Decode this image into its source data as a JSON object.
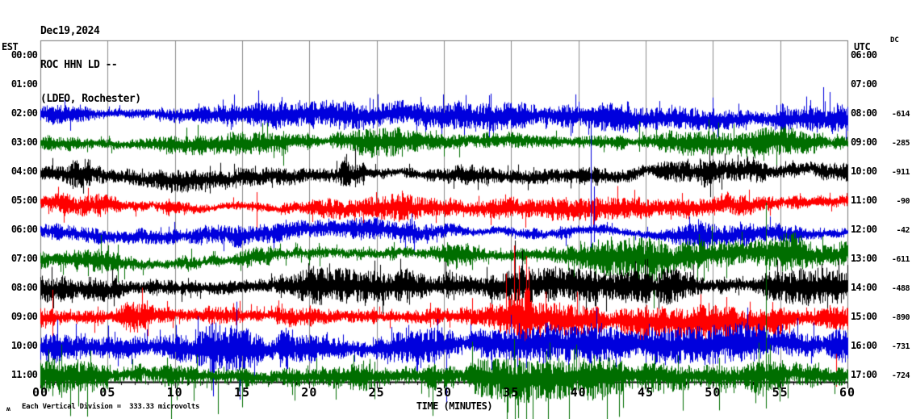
{
  "title": {
    "date": "Dec19,2024",
    "station": "ROC HHN LD --",
    "location": "(LDEO, Rochester)"
  },
  "axes": {
    "left_header": "EST",
    "right_header": "UTC",
    "dc_header": "DC",
    "x_label": "TIME (MINUTES)",
    "x_ticks": [
      "00",
      "05",
      "10",
      "15",
      "20",
      "25",
      "30",
      "35",
      "40",
      "45",
      "50",
      "55",
      "60"
    ],
    "footnote_marker": "ʍ",
    "footnote": "Each Vertical Division =  333.33 microvolts"
  },
  "colors": {
    "black_trace": "#000000",
    "red_trace": "#ff0000",
    "blue_trace": "#0000dd",
    "green_trace": "#006e00",
    "gridline": "#8c8c8c",
    "border": "#777777",
    "axis": "#000000",
    "text": "#000000",
    "background": "#ffffff"
  },
  "chart_data": {
    "type": "line",
    "subtype": "helicorder-seismogram",
    "x_range_minutes": [
      0,
      60
    ],
    "minutes_per_row": 60,
    "gridlines_every_minutes": 5,
    "vertical_division_microvolts": 333.33,
    "rows": [
      {
        "est": "00:00",
        "utc": "06:00",
        "dc": null,
        "color": null,
        "seed": 0,
        "amp": 0,
        "wstep": 0,
        "wmax": 0,
        "bursts": [],
        "spikes": [],
        "tail_p": 0,
        "tail_f": 1,
        "dbias": 1
      },
      {
        "est": "01:00",
        "utc": "07:00",
        "dc": null,
        "color": null,
        "seed": 0,
        "amp": 0,
        "wstep": 0,
        "wmax": 0,
        "bursts": [],
        "spikes": [],
        "tail_p": 0,
        "tail_f": 1,
        "dbias": 1
      },
      {
        "est": "02:00",
        "utc": "08:00",
        "dc": "-614",
        "color": "#0000dd",
        "seed": 101,
        "amp": 8,
        "wstep": 1.0,
        "wmax": 7,
        "bursts": [
          {
            "from": 55,
            "to": 60,
            "f": 1.7
          },
          {
            "from": 0.8,
            "to": 2.5,
            "f": 1.3
          }
        ],
        "spikes": [
          {
            "m": 58.2,
            "up": 34,
            "down": 12
          },
          {
            "m": 58.7,
            "up": 28,
            "down": 8
          },
          {
            "m": 16.2,
            "up": 30,
            "down": 8
          },
          {
            "m": 33.5,
            "up": 26,
            "down": 6
          }
        ],
        "tail_p": 0.035,
        "tail_f": 2.0,
        "dbias": 1
      },
      {
        "est": "03:00",
        "utc": "09:00",
        "dc": "-285",
        "color": "#006e00",
        "seed": 202,
        "amp": 7,
        "wstep": 0.9,
        "wmax": 7,
        "bursts": [
          {
            "from": 18,
            "to": 30,
            "f": 1.25
          },
          {
            "from": 52,
            "to": 58,
            "f": 1.2
          }
        ],
        "spikes": [
          {
            "m": 44.5,
            "up": 28,
            "down": 10
          }
        ],
        "tail_p": 0.03,
        "tail_f": 1.9,
        "dbias": 1
      },
      {
        "est": "04:00",
        "utc": "10:00",
        "dc": "-911",
        "color": "#000000",
        "seed": 303,
        "amp": 6.5,
        "wstep": 1.6,
        "wmax": 11,
        "bursts": [
          {
            "from": 2.2,
            "to": 3.8,
            "f": 1.8
          },
          {
            "from": 22.3,
            "to": 24.2,
            "f": 1.8
          },
          {
            "from": 49,
            "to": 54,
            "f": 1.4
          }
        ],
        "spikes": [
          {
            "m": 23.4,
            "up": 30,
            "down": 18
          }
        ],
        "tail_p": 0.03,
        "tail_f": 2.0,
        "dbias": 1
      },
      {
        "est": "05:00",
        "utc": "11:00",
        "dc": "-90",
        "color": "#ff0000",
        "seed": 404,
        "amp": 6.5,
        "wstep": 1.5,
        "wmax": 10,
        "bursts": [
          {
            "from": 8.5,
            "to": 9.6,
            "f": 1.5
          },
          {
            "from": 26,
            "to": 27.5,
            "f": 1.4
          }
        ],
        "spikes": [
          {
            "m": 16.1,
            "up": 12,
            "down": 40
          }
        ],
        "tail_p": 0.03,
        "tail_f": 2.0,
        "dbias": 1
      },
      {
        "est": "06:00",
        "utc": "12:00",
        "dc": "-42",
        "color": "#0000dd",
        "seed": 505,
        "amp": 6.5,
        "wstep": 1.4,
        "wmax": 9,
        "bursts": [
          {
            "from": 49,
            "to": 53,
            "f": 1.5
          }
        ],
        "spikes": [
          {
            "m": 40.9,
            "up": 135,
            "down": 22
          },
          {
            "m": 41.15,
            "up": 55,
            "down": 14
          },
          {
            "m": 27.8,
            "up": 12,
            "down": 30
          }
        ],
        "tail_p": 0.03,
        "tail_f": 2.0,
        "dbias": 1
      },
      {
        "est": "07:00",
        "utc": "13:00",
        "dc": "-611",
        "color": "#006e00",
        "seed": 606,
        "amp": 8.5,
        "wstep": 1.5,
        "wmax": 10,
        "bursts": [
          {
            "from": 14.5,
            "to": 18,
            "f": 1.55
          },
          {
            "from": 40,
            "to": 46.5,
            "f": 1.45
          },
          {
            "from": 55,
            "to": 60,
            "f": 1.3
          }
        ],
        "spikes": [
          {
            "m": 41.3,
            "up": 18,
            "down": 70
          },
          {
            "m": 45.6,
            "up": 15,
            "down": 60
          }
        ],
        "tail_p": 0.04,
        "tail_f": 2.1,
        "dbias": 1
      },
      {
        "est": "08:00",
        "utc": "14:00",
        "dc": "-488",
        "color": "#000000",
        "seed": 707,
        "amp": 10.5,
        "wstep": 1.0,
        "wmax": 7,
        "bursts": [
          {
            "from": 0,
            "to": 12,
            "f": 1.15
          }
        ],
        "spikes": [
          {
            "m": 35.3,
            "up": 60,
            "down": 15
          }
        ],
        "tail_p": 0.04,
        "tail_f": 2.0,
        "dbias": 1
      },
      {
        "est": "09:00",
        "utc": "15:00",
        "dc": "-890",
        "color": "#ff0000",
        "seed": 808,
        "amp": 10.5,
        "wstep": 1.0,
        "wmax": 7,
        "bursts": [
          {
            "from": 34.6,
            "to": 36.4,
            "f": 1.6
          }
        ],
        "spikes": [
          {
            "m": 35.2,
            "up": 90,
            "down": 85
          },
          {
            "m": 35.6,
            "up": 65,
            "down": 60
          },
          {
            "m": 59.15,
            "up": 12,
            "down": 85
          },
          {
            "m": 0.9,
            "up": 35,
            "down": 30
          }
        ],
        "tail_p": 0.045,
        "tail_f": 2.1,
        "dbias": 1
      },
      {
        "est": "10:00",
        "utc": "16:00",
        "dc": "-731",
        "color": "#0000dd",
        "seed": 909,
        "amp": 11.5,
        "wstep": 1.0,
        "wmax": 7,
        "bursts": [
          {
            "from": 11.5,
            "to": 18.5,
            "f": 1.35
          }
        ],
        "spikes": [
          {
            "m": 30.2,
            "up": 15,
            "down": 70
          },
          {
            "m": 14.8,
            "up": 20,
            "down": 65
          }
        ],
        "tail_p": 0.05,
        "tail_f": 2.0,
        "dbias": 1
      },
      {
        "est": "11:00",
        "utc": "17:00",
        "dc": "-724",
        "color": "#006e00",
        "seed": 1010,
        "amp": 11.5,
        "wstep": 1.0,
        "wmax": 7,
        "bursts": [
          {
            "from": 0,
            "to": 5,
            "f": 1.2
          }
        ],
        "spikes": [
          {
            "m": 53.95,
            "up": 215,
            "down": 40
          },
          {
            "m": 3.5,
            "up": 10,
            "down": 50
          },
          {
            "m": 9.7,
            "up": 12,
            "down": 57
          },
          {
            "m": 13.2,
            "up": 10,
            "down": 47
          },
          {
            "m": 35.5,
            "up": 14,
            "down": 52
          }
        ],
        "tail_p": 0.05,
        "tail_f": 2.4,
        "dbias": 1.25
      }
    ]
  }
}
